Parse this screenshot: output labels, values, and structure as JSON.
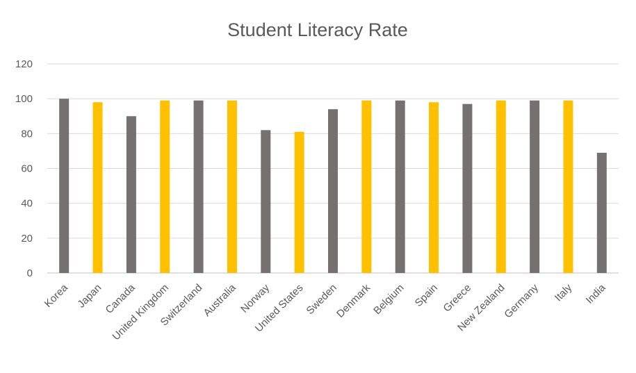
{
  "chart_data": {
    "type": "bar",
    "title": "Student Literacy Rate",
    "xlabel": "",
    "ylabel": "",
    "ylim": [
      0,
      120
    ],
    "yticks": [
      0,
      20,
      40,
      60,
      80,
      100,
      120
    ],
    "grid": true,
    "legend": "none",
    "categories": [
      "Korea",
      "Japan",
      "Canada",
      "United Kingdom",
      "Switzerland",
      "Australia",
      "Norway",
      "United States",
      "Sweden",
      "Denmark",
      "Belgium",
      "Spain",
      "Greece",
      "New Zealand",
      "Germany",
      "Italy",
      "India"
    ],
    "values": [
      100,
      98,
      90,
      99,
      99,
      99,
      82,
      81,
      94,
      99,
      99,
      98,
      97,
      99,
      99,
      99,
      69
    ],
    "bar_colors": [
      "#767171",
      "#ffc000",
      "#767171",
      "#ffc000",
      "#767171",
      "#ffc000",
      "#767171",
      "#ffc000",
      "#767171",
      "#ffc000",
      "#767171",
      "#ffc000",
      "#767171",
      "#ffc000",
      "#767171",
      "#ffc000",
      "#767171"
    ]
  }
}
